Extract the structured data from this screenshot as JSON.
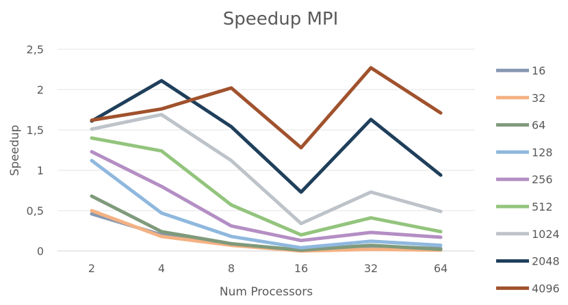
{
  "chart_data": {
    "type": "line",
    "title": "Speedup MPI",
    "xlabel": "Num Processors",
    "ylabel": "Speedup",
    "categories": [
      "2",
      "4",
      "8",
      "16",
      "32",
      "64"
    ],
    "ylim": [
      0,
      2.5
    ],
    "yticks": [
      0,
      0.5,
      1,
      1.5,
      2,
      2.5
    ],
    "ytick_labels": [
      "0",
      "0,5",
      "1",
      "1,5",
      "2",
      "2,5"
    ],
    "grid": true,
    "legend_position": "right",
    "series": [
      {
        "name": "16",
        "color": "#8497b0",
        "values": [
          0.46,
          0.2,
          0.08,
          0.01,
          0.06,
          0.03
        ]
      },
      {
        "name": "32",
        "color": "#f4b183",
        "values": [
          0.5,
          0.18,
          0.07,
          0.0,
          0.02,
          0.01
        ]
      },
      {
        "name": "64",
        "color": "#7f9a7b",
        "values": [
          0.68,
          0.24,
          0.09,
          0.01,
          0.07,
          0.02
        ]
      },
      {
        "name": "128",
        "color": "#8fb8de",
        "values": [
          1.12,
          0.47,
          0.18,
          0.04,
          0.12,
          0.07
        ]
      },
      {
        "name": "256",
        "color": "#b48ec4",
        "values": [
          1.23,
          0.8,
          0.31,
          0.13,
          0.23,
          0.17
        ]
      },
      {
        "name": "512",
        "color": "#93c47d",
        "values": [
          1.4,
          1.24,
          0.57,
          0.2,
          0.41,
          0.24
        ]
      },
      {
        "name": "1024",
        "color": "#bdc3c9",
        "values": [
          1.51,
          1.69,
          1.12,
          0.34,
          0.73,
          0.49
        ]
      },
      {
        "name": "2048",
        "color": "#1f3f5b",
        "values": [
          1.61,
          2.11,
          1.54,
          0.73,
          1.63,
          0.94
        ]
      },
      {
        "name": "4096",
        "color": "#a0522d",
        "values": [
          1.62,
          1.76,
          2.02,
          1.28,
          2.27,
          1.71
        ]
      }
    ]
  }
}
